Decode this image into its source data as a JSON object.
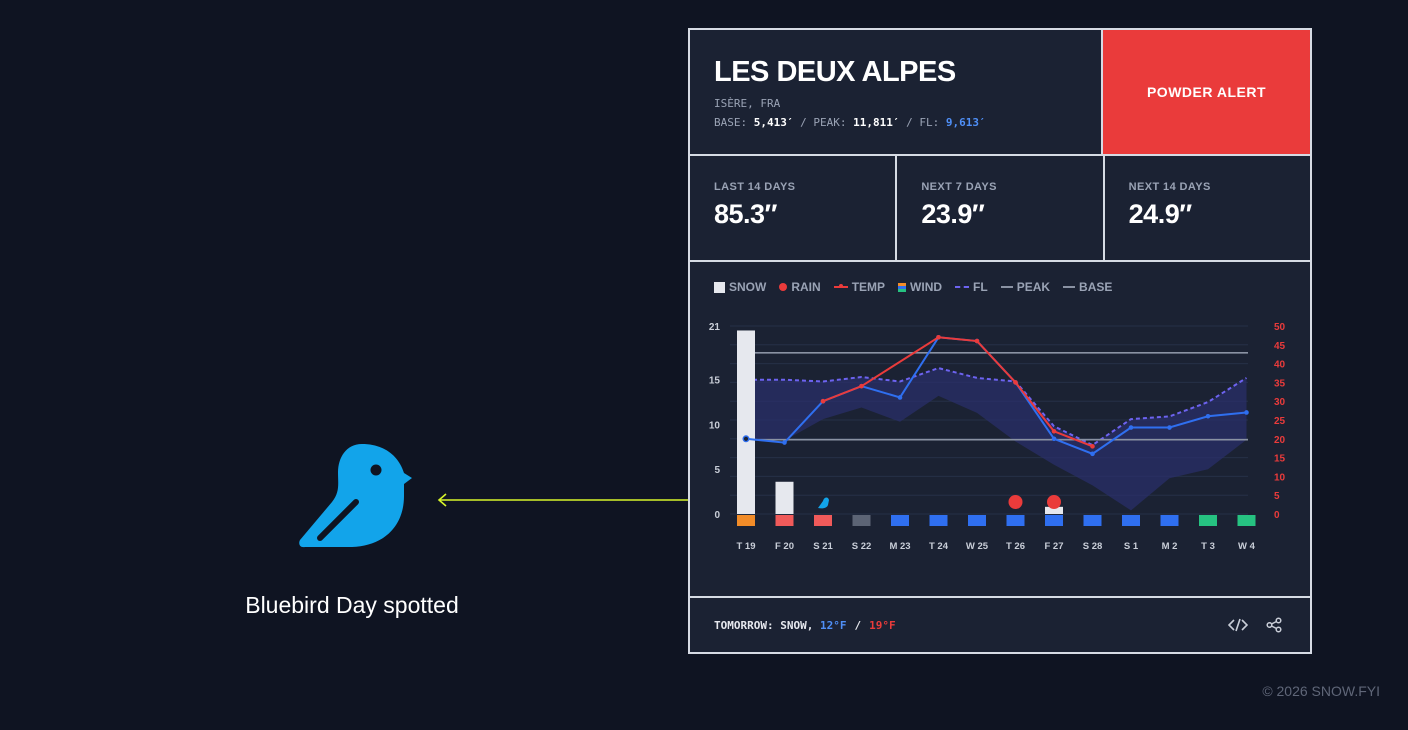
{
  "hero": {
    "icon": "bluebird-icon",
    "caption": "Bluebird Day spotted",
    "bird_color": "#12a4ea",
    "pointer_color": "#d7f52a"
  },
  "resort": {
    "name": "LES DEUX ALPES",
    "region": "ISÈRE, FRA",
    "base_label": "BASE:",
    "base_value": "5,413′",
    "peak_label": "PEAK:",
    "peak_value": "11,811′",
    "fl_label": "FL:",
    "fl_value": "9,613′"
  },
  "alert": {
    "label": "POWDER ALERT",
    "color": "#ea3b3b"
  },
  "stats": [
    {
      "label": "LAST 14 DAYS",
      "value": "85.3″"
    },
    {
      "label": "NEXT 7 DAYS",
      "value": "23.9″"
    },
    {
      "label": "NEXT 14 DAYS",
      "value": "24.9″"
    }
  ],
  "legend": [
    {
      "label": "SNOW",
      "icon": "snow-swatch"
    },
    {
      "label": "RAIN",
      "icon": "rain-dot"
    },
    {
      "label": "TEMP",
      "icon": "temp-line"
    },
    {
      "label": "WIND",
      "icon": "wind-swatch"
    },
    {
      "label": "FL",
      "icon": "fl-dashed-line"
    },
    {
      "label": "PEAK",
      "icon": "peak-line"
    },
    {
      "label": "BASE",
      "icon": "base-line"
    }
  ],
  "chart_data": {
    "type": "bar",
    "categories": [
      "T 19",
      "F 20",
      "S 21",
      "S 22",
      "M 23",
      "T 24",
      "W 25",
      "T 26",
      "F 27",
      "S 28",
      "S 1",
      "M 2",
      "T 3",
      "W 4"
    ],
    "y_left": {
      "ticks": [
        0,
        5,
        10,
        15,
        21
      ],
      "range": [
        0,
        21
      ]
    },
    "y_right": {
      "ticks": [
        0,
        5,
        10,
        15,
        20,
        25,
        30,
        35,
        40,
        45,
        50
      ],
      "range": [
        0,
        50
      ]
    },
    "series": [
      {
        "name": "SNOW",
        "axis": "left",
        "values": [
          20.5,
          3.6,
          0,
          0,
          0,
          0,
          0,
          0,
          0.8,
          0,
          0,
          0,
          0,
          0
        ],
        "color": "#e6e8ee"
      },
      {
        "name": "RAIN",
        "axis": "left",
        "values": [
          0,
          0,
          0,
          0,
          0,
          0,
          0,
          1,
          1,
          0,
          0,
          0,
          0,
          0
        ],
        "color": "#ea3b3b"
      },
      {
        "name": "TEMP",
        "axis": "right",
        "high": [
          null,
          null,
          30,
          34,
          null,
          47,
          46,
          35,
          22,
          18,
          null,
          null,
          null,
          null
        ],
        "low": [
          20,
          19,
          30,
          34,
          31,
          47,
          46,
          35,
          20,
          16,
          23,
          23,
          26,
          27
        ],
        "high_color": "#ea3b3b",
        "low_color": "#2f6ff0"
      },
      {
        "name": "WIND",
        "values": [
          "orange",
          "red",
          "red",
          "gray",
          "blue",
          "blue",
          "blue",
          "blue",
          "blue",
          "blue",
          "blue",
          "blue",
          "green",
          "green"
        ]
      },
      {
        "name": "FL",
        "axis": "left",
        "values": [
          15,
          15,
          14.8,
          15.3,
          14.8,
          16.3,
          15.2,
          14.8,
          9.8,
          7.7,
          10.6,
          10.9,
          12.5,
          15.2
        ],
        "color": "#6d63f0"
      },
      {
        "name": "PEAK",
        "axis": "left",
        "values": [
          18,
          18,
          18,
          18,
          18,
          18,
          18,
          18,
          18,
          18,
          18,
          18,
          18,
          18
        ],
        "color": "#8a92a3"
      },
      {
        "name": "BASE",
        "axis": "left",
        "values": [
          8.3,
          8.3,
          8.3,
          8.3,
          8.3,
          8.3,
          8.3,
          8.3,
          8.3,
          8.3,
          8.3,
          8.3,
          8.3,
          8.3
        ],
        "color": "#8a92a3"
      }
    ],
    "wind_colors": {
      "orange": "#f28c28",
      "red": "#f05a5a",
      "gray": "#5c6475",
      "blue": "#2f6ff0",
      "green": "#26c281"
    },
    "bluebird_day": "S 21",
    "grid": true,
    "legend_position": "top-left"
  },
  "footer": {
    "label": "TOMORROW: SNOW,",
    "low": "12°F",
    "separator": "/",
    "high": "19°F",
    "embed_icon": "code-embed-icon",
    "share_icon": "share-icon"
  },
  "copyright": "© 2026 SNOW.FYI"
}
